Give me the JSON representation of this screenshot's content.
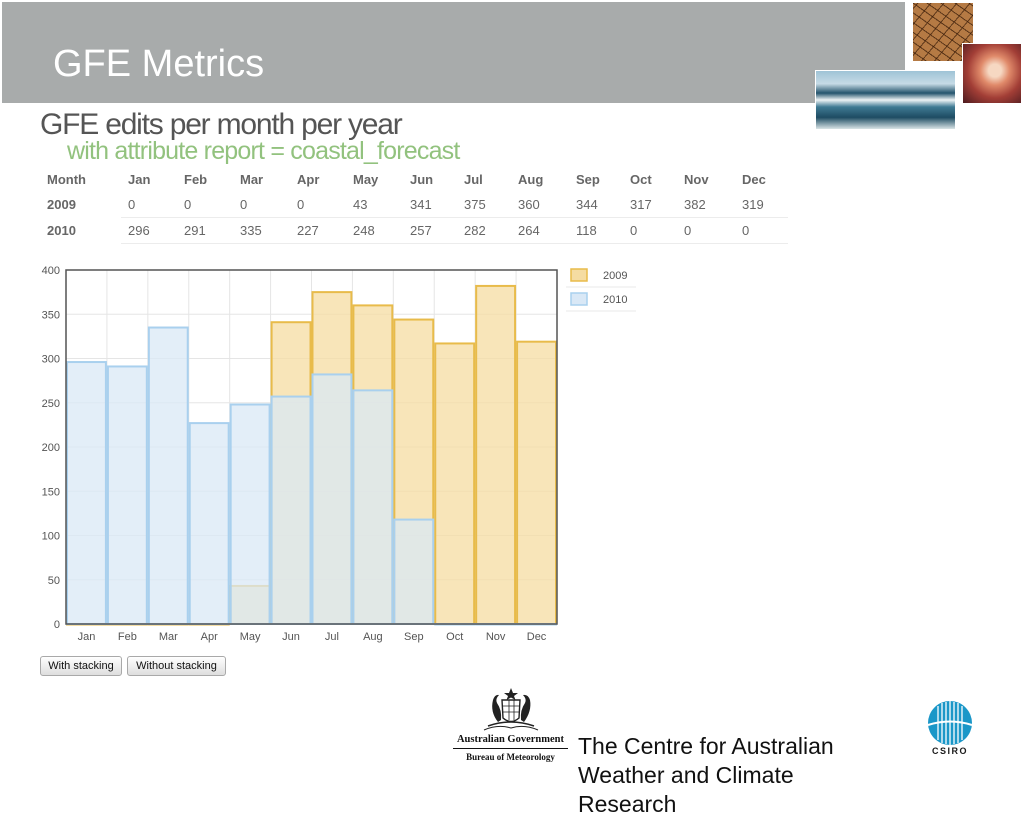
{
  "slide": {
    "title": "GFE Metrics"
  },
  "table": {
    "header": [
      "Month",
      "Jan",
      "Feb",
      "Mar",
      "Apr",
      "May",
      "Jun",
      "Jul",
      "Aug",
      "Sep",
      "Oct",
      "Nov",
      "Dec"
    ],
    "rows": [
      {
        "label": "2009",
        "cells": [
          "0",
          "0",
          "0",
          "0",
          "43",
          "341",
          "375",
          "360",
          "344",
          "317",
          "382",
          "319"
        ]
      },
      {
        "label": "2010",
        "cells": [
          "296",
          "291",
          "335",
          "227",
          "248",
          "257",
          "282",
          "264",
          "118",
          "0",
          "0",
          "0"
        ]
      }
    ]
  },
  "chart_data": {
    "type": "bar",
    "title": "GFE edits per month per year",
    "subtitle": "with attribute report = coastal_forecast",
    "xlabel": "",
    "ylabel": "",
    "categories": [
      "Jan",
      "Feb",
      "Mar",
      "Apr",
      "May",
      "Jun",
      "Jul",
      "Aug",
      "Sep",
      "Oct",
      "Nov",
      "Dec"
    ],
    "series": [
      {
        "name": "2009",
        "values": [
          0,
          0,
          0,
          0,
          43,
          341,
          375,
          360,
          344,
          317,
          382,
          319
        ],
        "color": "#e8bb4a",
        "fill": "#f5dca2"
      },
      {
        "name": "2010",
        "values": [
          296,
          291,
          335,
          227,
          248,
          257,
          282,
          264,
          118,
          0,
          0,
          0
        ],
        "color": "#a9d0ee",
        "fill": "#d9e8f6"
      }
    ],
    "ylim": [
      0,
      400
    ],
    "yticks": [
      0,
      50,
      100,
      150,
      200,
      250,
      300,
      350,
      400
    ],
    "grid": true,
    "legend": "right",
    "overlap": true
  },
  "controls": {
    "with_stacking": "With stacking",
    "without_stacking": "Without stacking"
  },
  "footer": {
    "gov_line1": "Australian Government",
    "gov_line2": "Bureau of Meteorology",
    "centre_text": "The Centre for Australian Weather and Climate Research",
    "csiro": "CSIRO"
  },
  "icons": {
    "crest": "coat-of-arms-icon",
    "csiro_logo": "csiro-globe-icon"
  }
}
